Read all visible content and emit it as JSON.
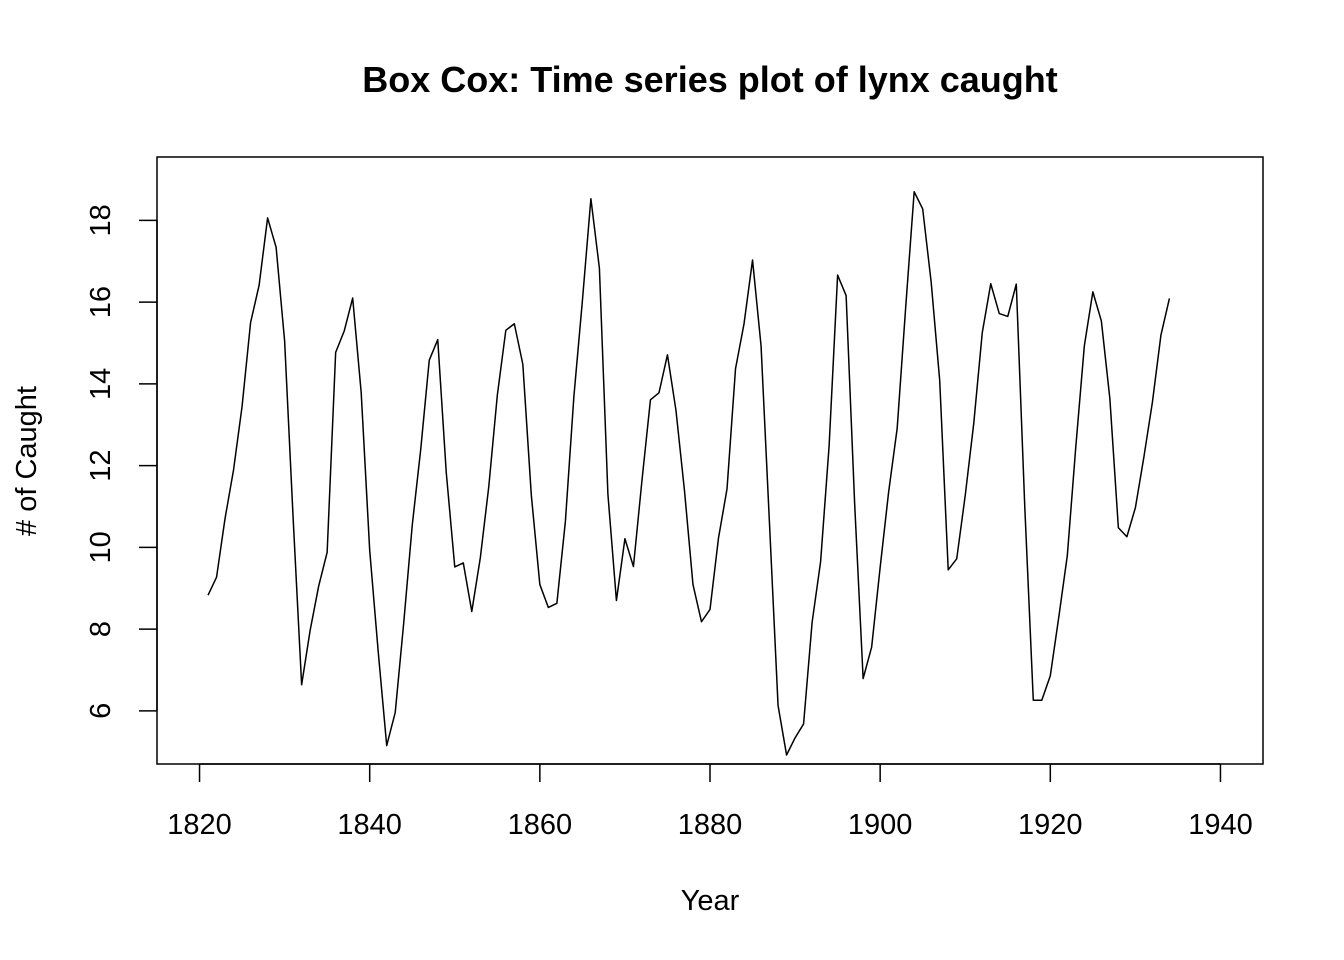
{
  "chart_data": {
    "type": "line",
    "title": "Box Cox: Time series plot of lynx caught",
    "xlabel": "Year",
    "ylabel": "# of Caught",
    "xlim": [
      1815,
      1945
    ],
    "ylim": [
      4.7,
      19.55
    ],
    "x_ticks": [
      1820,
      1840,
      1860,
      1880,
      1900,
      1920,
      1940
    ],
    "y_ticks": [
      6,
      8,
      10,
      12,
      14,
      16,
      18
    ],
    "grid": false,
    "legend": "none",
    "line_color": "#000000",
    "series": [
      {
        "x": [
          1821,
          1822,
          1823,
          1824,
          1825,
          1826,
          1827,
          1828,
          1829,
          1830,
          1831,
          1832,
          1833,
          1834,
          1835,
          1836,
          1837,
          1838,
          1839,
          1840,
          1841,
          1842,
          1843,
          1844,
          1845,
          1846,
          1847,
          1848,
          1849,
          1850,
          1851,
          1852,
          1853,
          1854,
          1855,
          1856,
          1857,
          1858,
          1859,
          1860,
          1861,
          1862,
          1863,
          1864,
          1865,
          1866,
          1867,
          1868,
          1869,
          1870,
          1871,
          1872,
          1873,
          1874,
          1875,
          1876,
          1877,
          1878,
          1879,
          1880,
          1881,
          1882,
          1883,
          1884,
          1885,
          1886,
          1887,
          1888,
          1889,
          1890,
          1891,
          1892,
          1893,
          1894,
          1895,
          1896,
          1897,
          1898,
          1899,
          1900,
          1901,
          1902,
          1903,
          1904,
          1905,
          1906,
          1907,
          1908,
          1909,
          1910,
          1911,
          1912,
          1913,
          1914,
          1915,
          1916,
          1917,
          1918,
          1919,
          1920,
          1921,
          1922,
          1923,
          1924,
          1925,
          1926,
          1927,
          1928,
          1929,
          1930,
          1931,
          1932,
          1933,
          1934
        ],
        "values": [
          8.83,
          9.27,
          10.71,
          11.9,
          13.45,
          15.5,
          16.41,
          18.06,
          17.34,
          15.05,
          10.72,
          6.64,
          7.97,
          9.05,
          9.88,
          14.77,
          15.29,
          16.1,
          13.79,
          9.93,
          7.45,
          5.15,
          5.96,
          8.15,
          10.54,
          12.4,
          14.58,
          15.08,
          11.83,
          9.52,
          9.62,
          8.43,
          9.74,
          11.49,
          13.72,
          15.31,
          15.47,
          14.48,
          11.27,
          9.09,
          8.53,
          8.63,
          10.63,
          13.69,
          16.03,
          18.53,
          16.83,
          11.3,
          8.7,
          10.21,
          9.53,
          11.63,
          13.61,
          13.78,
          14.71,
          13.35,
          11.39,
          9.09,
          8.18,
          8.48,
          10.23,
          11.43,
          14.37,
          15.47,
          17.03,
          14.93,
          10.55,
          6.13,
          4.92,
          5.34,
          5.68,
          8.16,
          9.65,
          12.48,
          16.66,
          16.16,
          11.08,
          6.79,
          7.56,
          9.51,
          11.36,
          12.91,
          15.87,
          18.7,
          18.28,
          16.48,
          14.08,
          9.45,
          9.72,
          11.27,
          13.03,
          15.25,
          16.45,
          15.72,
          15.65,
          16.44,
          10.99,
          6.26,
          6.26,
          6.86,
          8.3,
          9.8,
          12.47,
          14.93,
          16.25,
          15.54,
          13.64,
          10.48,
          10.26,
          10.97,
          12.21,
          13.55,
          15.19,
          16.09
        ]
      }
    ]
  }
}
